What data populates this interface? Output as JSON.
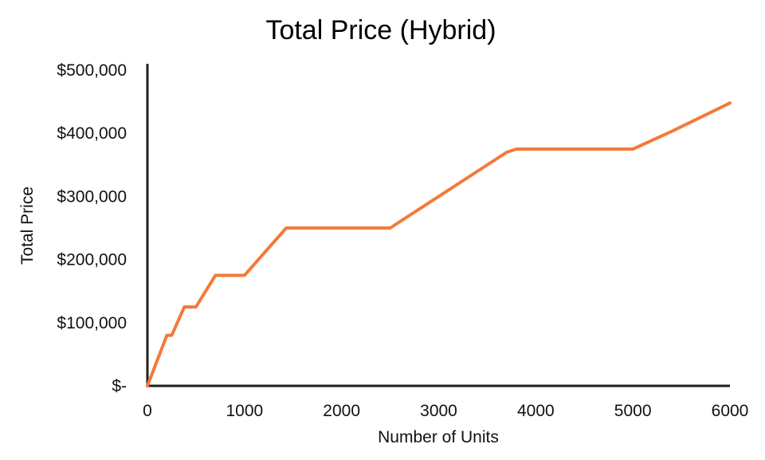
{
  "chart_data": {
    "type": "line",
    "title": "Total Price (Hybrid)",
    "xlabel": "Number of Units",
    "ylabel": "Total Price",
    "xlim": [
      0,
      6000
    ],
    "ylim": [
      0,
      500000
    ],
    "x_ticks": [
      0,
      1000,
      2000,
      3000,
      4000,
      5000,
      6000
    ],
    "x_tick_labels": [
      "0",
      "1000",
      "2000",
      "3000",
      "4000",
      "5000",
      "6000"
    ],
    "y_ticks": [
      0,
      100000,
      200000,
      300000,
      400000,
      500000
    ],
    "y_tick_labels": [
      "$-",
      "$100,000",
      "$200,000",
      "$300,000",
      "$400,000",
      "$500,000"
    ],
    "grid": false,
    "legend": "none",
    "series": [
      {
        "color": "#F47A3A",
        "points": [
          [
            0,
            0
          ],
          [
            200,
            80000
          ],
          [
            250,
            80000
          ],
          [
            380,
            125000
          ],
          [
            500,
            125000
          ],
          [
            700,
            175000
          ],
          [
            1000,
            175000
          ],
          [
            1430,
            250000
          ],
          [
            2500,
            250000
          ],
          [
            3700,
            370000
          ],
          [
            3800,
            375000
          ],
          [
            5000,
            375000
          ],
          [
            5400,
            403000
          ],
          [
            6000,
            448000
          ]
        ]
      }
    ]
  }
}
